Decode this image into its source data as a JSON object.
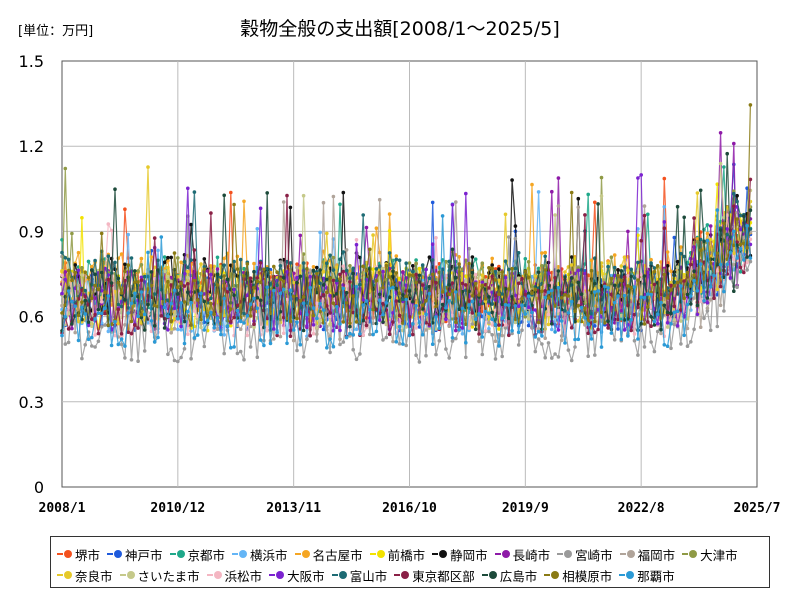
{
  "unit_label": "[単位：万円]",
  "chart_data": {
    "type": "line",
    "title": "穀物全般の支出額[2008/1～2025/5]",
    "xlabel": "",
    "ylabel": "",
    "x_start": "2008/1",
    "x_end": "2025/5",
    "x_ticks": [
      "2008/1",
      "2010/12",
      "2013/11",
      "2016/10",
      "2019/9",
      "2022/8",
      "2025/7"
    ],
    "y_ticks": [
      "0",
      "0.3",
      "0.6",
      "0.9",
      "1.2",
      "1.5"
    ],
    "ylim": [
      0,
      1.5
    ],
    "grid": true,
    "legend_position": "bottom",
    "series": [
      {
        "name": "堺市",
        "color": "#f4511e",
        "base": 0.68
      },
      {
        "name": "神戸市",
        "color": "#1e5adc",
        "base": 0.66
      },
      {
        "name": "京都市",
        "color": "#1fa88a",
        "base": 0.7
      },
      {
        "name": "横浜市",
        "color": "#64b5f6",
        "base": 0.64
      },
      {
        "name": "名古屋市",
        "color": "#f5a623",
        "base": 0.72
      },
      {
        "name": "前橋市",
        "color": "#f2e200",
        "base": 0.66
      },
      {
        "name": "静岡市",
        "color": "#111111",
        "base": 0.7
      },
      {
        "name": "長崎市",
        "color": "#8e1aa8",
        "base": 0.66
      },
      {
        "name": "宮崎市",
        "color": "#9a9a9a",
        "base": 0.55
      },
      {
        "name": "福岡市",
        "color": "#b0a49a",
        "base": 0.62
      },
      {
        "name": "大津市",
        "color": "#8f9a45",
        "base": 0.7
      },
      {
        "name": "奈良市",
        "color": "#e6c92a",
        "base": 0.68
      },
      {
        "name": "さいたま市",
        "color": "#c5c98a",
        "base": 0.66
      },
      {
        "name": "浜松市",
        "color": "#f4b6c2",
        "base": 0.64
      },
      {
        "name": "大阪市",
        "color": "#7b22d0",
        "base": 0.66
      },
      {
        "name": "富山市",
        "color": "#1d6b74",
        "base": 0.72
      },
      {
        "name": "東京都区部",
        "color": "#8a2046",
        "base": 0.64
      },
      {
        "name": "広島市",
        "color": "#1c4a3a",
        "base": 0.66
      },
      {
        "name": "相模原市",
        "color": "#8a7a14",
        "base": 0.68
      },
      {
        "name": "那覇市",
        "color": "#2b9ad6",
        "base": 0.6
      }
    ]
  }
}
